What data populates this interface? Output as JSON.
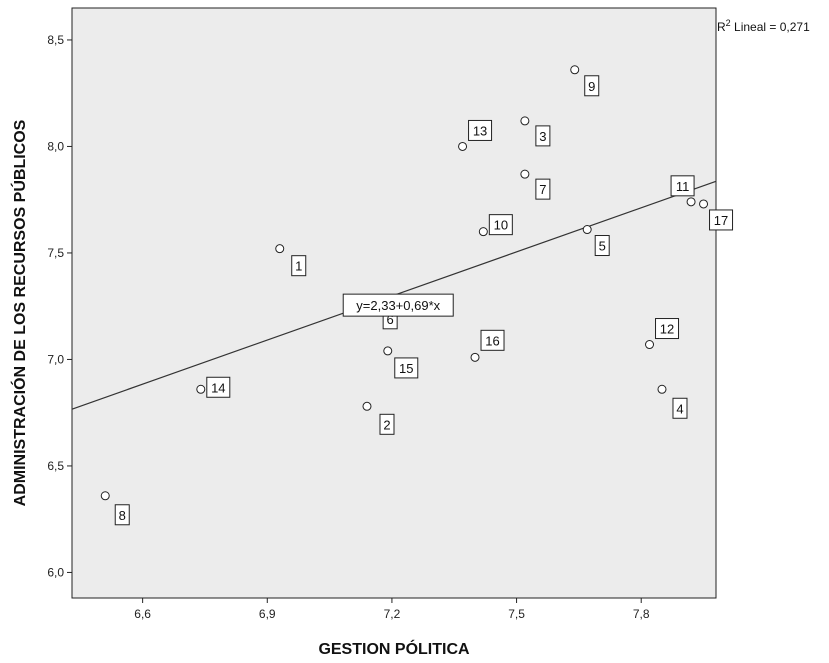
{
  "chart_data": {
    "type": "scatter",
    "title": "",
    "xlabel": "GESTION PÓLITICA",
    "ylabel": "ADMINISTRACIÓN DE LOS RECURSOS PÚBLICOS",
    "xlim": [
      6.43,
      7.98
    ],
    "ylim": [
      5.88,
      8.65
    ],
    "x_ticks": [
      "6,6",
      "6,9",
      "7,2",
      "7,5",
      "7,8"
    ],
    "x_tick_values": [
      6.6,
      6.9,
      7.2,
      7.5,
      7.8
    ],
    "y_ticks": [
      "6,0",
      "6,5",
      "7,0",
      "7,5",
      "8,0",
      "8,5"
    ],
    "y_tick_values": [
      6.0,
      6.5,
      7.0,
      7.5,
      8.0,
      8.5
    ],
    "grid": false,
    "points": [
      {
        "label": "1",
        "x": 6.93,
        "y": 7.52
      },
      {
        "label": "2",
        "x": 7.14,
        "y": 6.78
      },
      {
        "label": "3",
        "x": 7.52,
        "y": 8.12
      },
      {
        "label": "4",
        "x": 7.85,
        "y": 6.86
      },
      {
        "label": "5",
        "x": 7.67,
        "y": 7.61
      },
      {
        "label": "6",
        "x": 7.15,
        "y": 7.28
      },
      {
        "label": "7",
        "x": 7.52,
        "y": 7.87
      },
      {
        "label": "8",
        "x": 6.51,
        "y": 6.36
      },
      {
        "label": "9",
        "x": 7.64,
        "y": 8.36
      },
      {
        "label": "10",
        "x": 7.42,
        "y": 7.6
      },
      {
        "label": "11",
        "x": 7.92,
        "y": 7.74
      },
      {
        "label": "12",
        "x": 7.82,
        "y": 7.07
      },
      {
        "label": "13",
        "x": 7.37,
        "y": 8.0
      },
      {
        "label": "14",
        "x": 6.74,
        "y": 6.86
      },
      {
        "label": "15",
        "x": 7.19,
        "y": 7.04
      },
      {
        "label": "16",
        "x": 7.4,
        "y": 7.01
      },
      {
        "label": "17",
        "x": 7.95,
        "y": 7.73
      }
    ],
    "fit_line": {
      "intercept": 2.33,
      "slope": 0.69
    },
    "equation_label": "y=2,33+0,69*x",
    "r2_label": {
      "prefix": "R",
      "superscript": "2",
      "text": " Lineal = 0,271"
    }
  }
}
